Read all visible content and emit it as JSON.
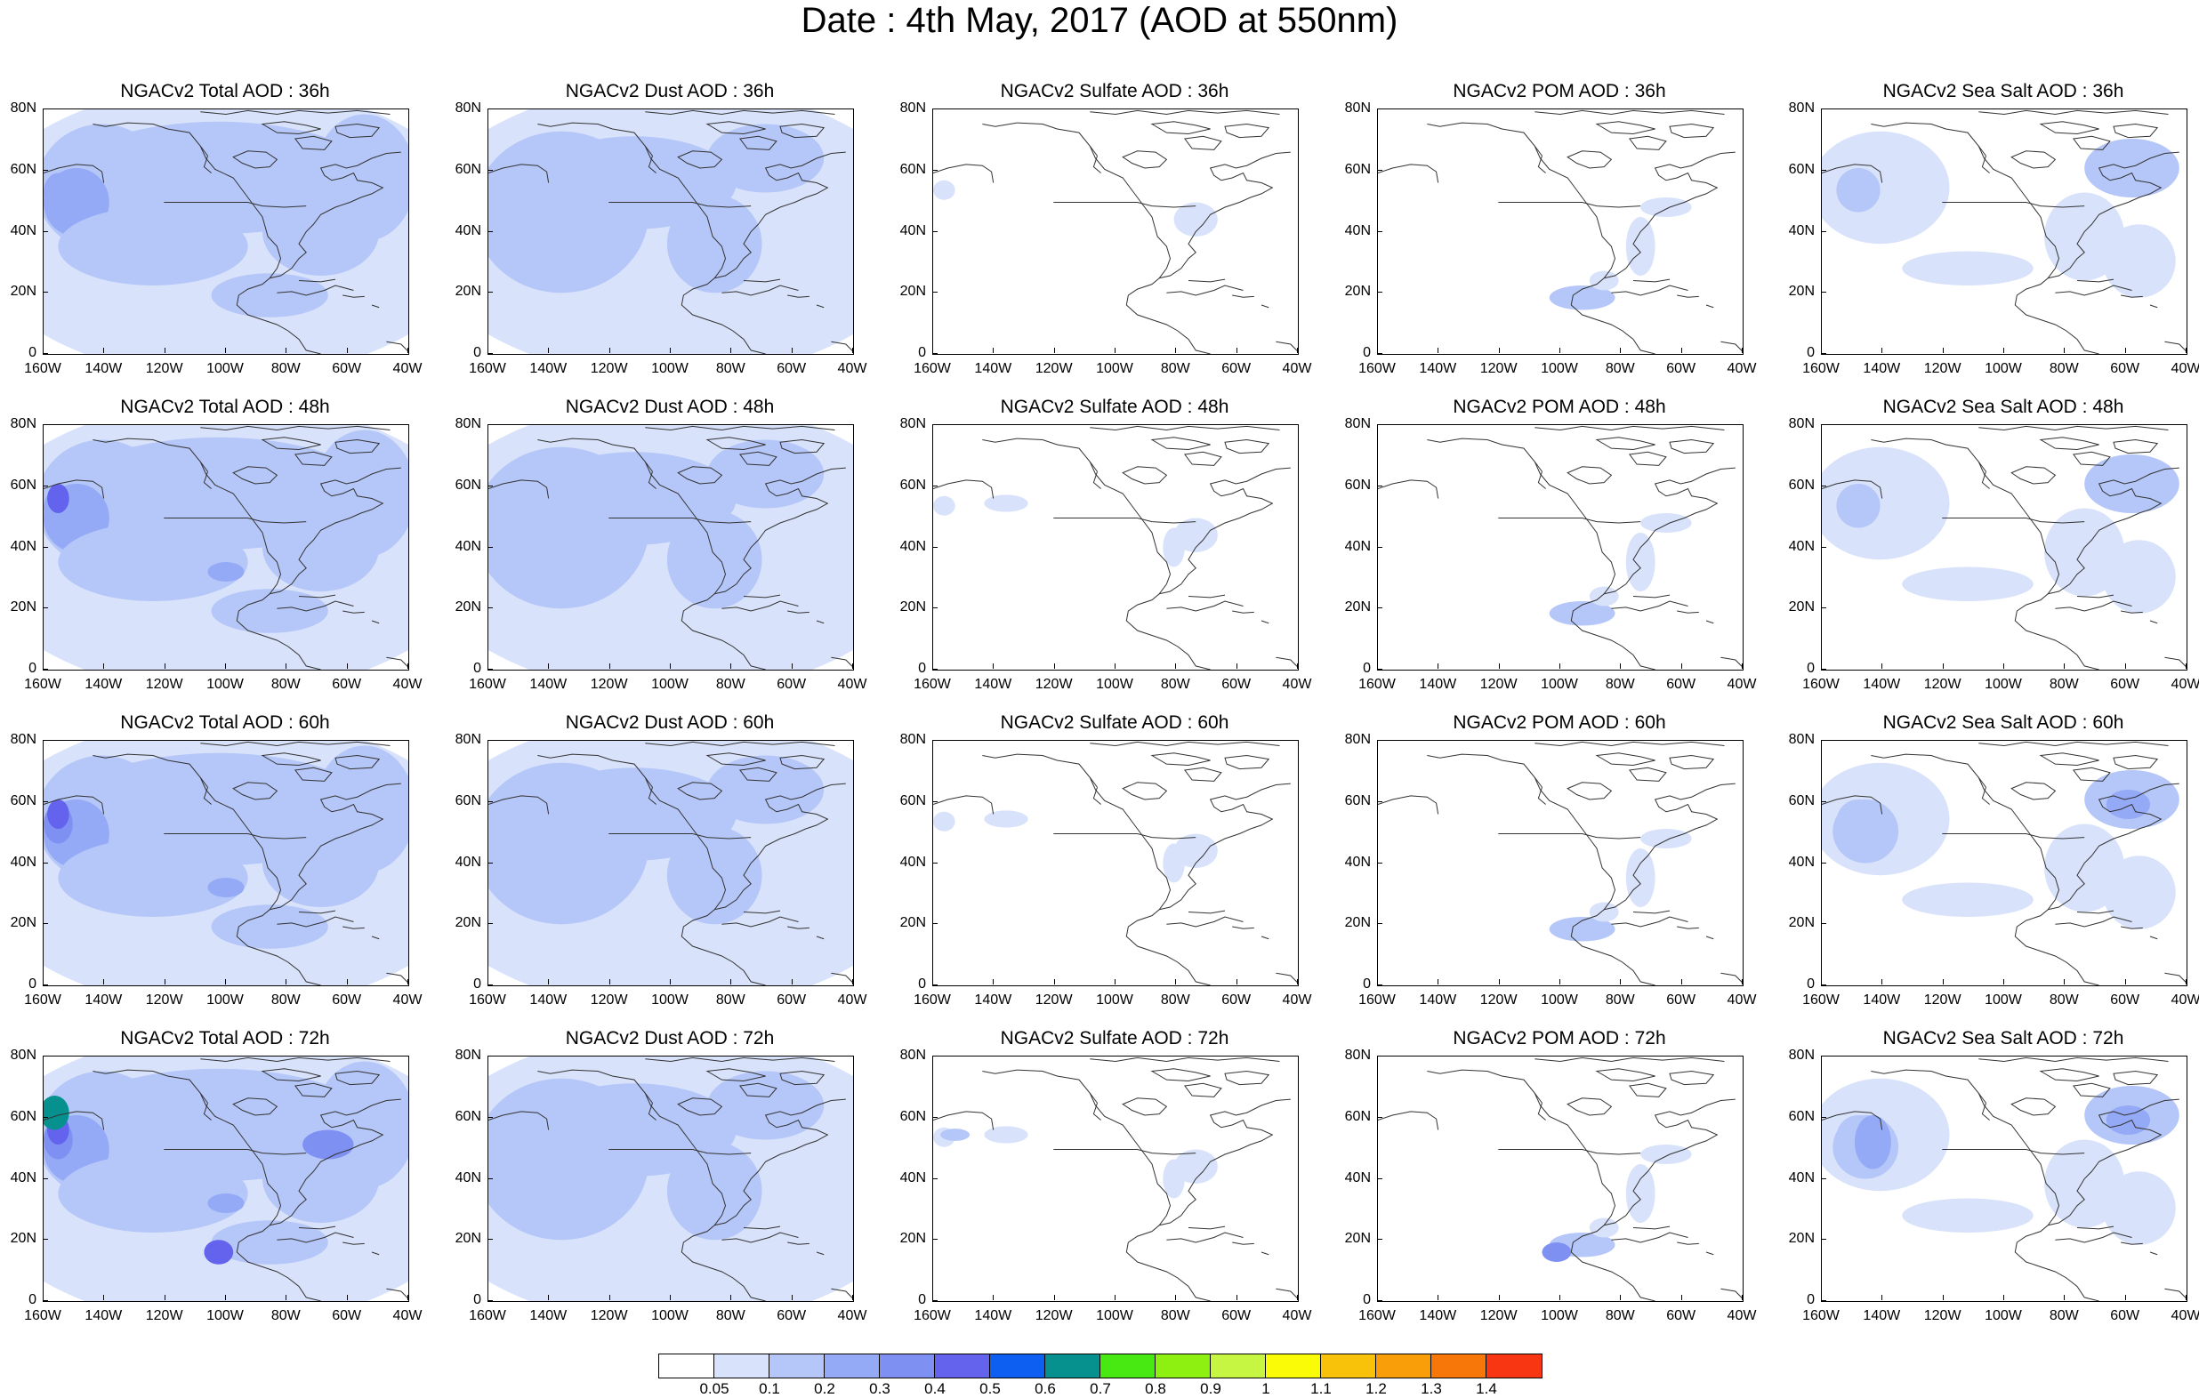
{
  "title": "Date : 4th May, 2017 (AOD at 550nm)",
  "lat_labels": [
    "0",
    "20N",
    "40N",
    "60N",
    "80N"
  ],
  "lon_labels": [
    "160W",
    "140W",
    "120W",
    "100W",
    "80W",
    "60W",
    "40W"
  ],
  "rows": [
    {
      "panels": [
        {
          "title": "NGACv2 Total AOD : 36h",
          "type": "total"
        },
        {
          "title": "NGACv2 Dust AOD : 36h",
          "type": "dust"
        },
        {
          "title": "NGACv2 Sulfate AOD : 36h",
          "type": "sulfate"
        },
        {
          "title": "NGACv2 POM AOD : 36h",
          "type": "pom"
        },
        {
          "title": "NGACv2 Sea Salt AOD : 36h",
          "type": "seasalt"
        }
      ]
    },
    {
      "panels": [
        {
          "title": "NGACv2 Total AOD : 48h",
          "type": "total"
        },
        {
          "title": "NGACv2 Dust AOD : 48h",
          "type": "dust"
        },
        {
          "title": "NGACv2 Sulfate AOD : 48h",
          "type": "sulfate"
        },
        {
          "title": "NGACv2 POM AOD : 48h",
          "type": "pom"
        },
        {
          "title": "NGACv2 Sea Salt AOD : 48h",
          "type": "seasalt"
        }
      ]
    },
    {
      "panels": [
        {
          "title": "NGACv2 Total AOD : 60h",
          "type": "total"
        },
        {
          "title": "NGACv2 Dust AOD : 60h",
          "type": "dust"
        },
        {
          "title": "NGACv2 Sulfate AOD : 60h",
          "type": "sulfate"
        },
        {
          "title": "NGACv2 POM AOD : 60h",
          "type": "pom"
        },
        {
          "title": "NGACv2 Sea Salt AOD : 60h",
          "type": "seasalt"
        }
      ]
    },
    {
      "panels": [
        {
          "title": "NGACv2 Total AOD : 72h",
          "type": "total"
        },
        {
          "title": "NGACv2 Dust AOD : 72h",
          "type": "dust"
        },
        {
          "title": "NGACv2 Sulfate AOD : 72h",
          "type": "sulfate"
        },
        {
          "title": "NGACv2 POM AOD : 72h",
          "type": "pom"
        },
        {
          "title": "NGACv2 Sea Salt  AOD : 72h",
          "type": "seasalt"
        }
      ]
    }
  ],
  "colorbar": {
    "colors": [
      "#ffffff",
      "#d8e2fb",
      "#b5c6f8",
      "#94aaf6",
      "#7f90f3",
      "#6363ee",
      "#0d5ff2",
      "#06918f",
      "#48e812",
      "#8ef010",
      "#c6f542",
      "#fafc07",
      "#f9c20a",
      "#f99e09",
      "#f77808",
      "#f83712"
    ],
    "labels": [
      "0.05",
      "0.1",
      "0.2",
      "0.3",
      "0.4",
      "0.5",
      "0.6",
      "0.7",
      "0.8",
      "0.9",
      "1",
      "1.1",
      "1.2",
      "1.3",
      "1.4"
    ]
  }
}
